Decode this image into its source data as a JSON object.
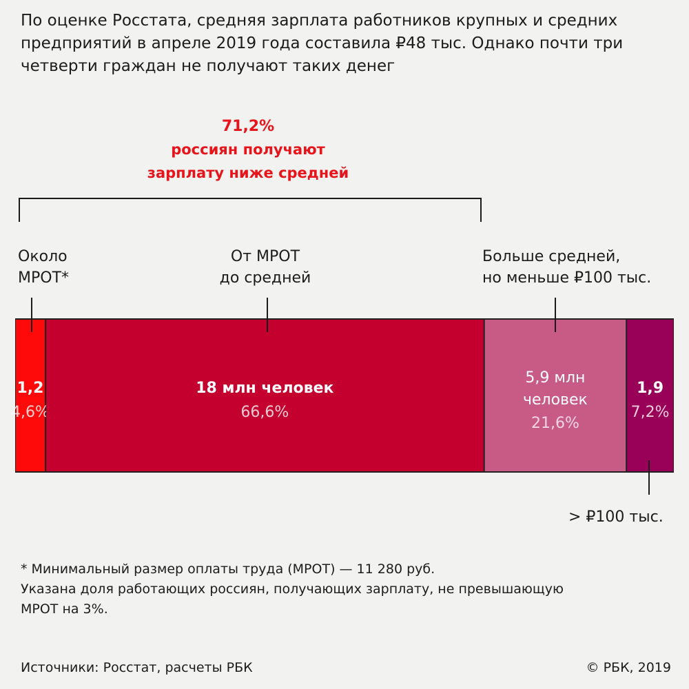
{
  "header": {
    "text": "По оценке Росстата, средняя зарплата работников крупных и средних предприятий в апреле 2019 года составила ₽48 тыс. Однако почти три четверти граждан не получают таких денег"
  },
  "highlight": {
    "percent": "71,2%",
    "line1": "россиян получают",
    "line2": "зарплату ниже средней",
    "color": "#e8141c"
  },
  "chart_data": {
    "type": "bar",
    "orientation": "horizontal-stacked",
    "unit": "%",
    "segments": [
      {
        "category_line1": "Около",
        "category_line2": "МРОТ*",
        "count_label": "1,2",
        "percent_label": "4,6%",
        "value": 4.6,
        "color": "#ff0a0a"
      },
      {
        "category_line1": "От МРОТ",
        "category_line2": "до средней",
        "count_label": "18 млн человек",
        "percent_label": "66,6%",
        "value": 66.6,
        "color": "#c4002f"
      },
      {
        "category_line1": "Больше средней,",
        "category_line2": "но меньше ₽100 тыс.",
        "count_label_line1": "5,9 млн",
        "count_label_line2": "человек",
        "percent_label": "21,6%",
        "value": 21.6,
        "color": "#c85a86"
      },
      {
        "category_line1": "> ₽100 тыс.",
        "count_label": "1,9",
        "percent_label": "7,2%",
        "value": 7.2,
        "color": "#990057"
      }
    ],
    "bracket_total": 71.2
  },
  "footnote": {
    "line1": "* Минимальный размер оплаты труда (МРОТ) — 11 280 руб.",
    "line2": "Указана доля работающих россиян, получающих зарплату, не превышающую",
    "line3": "МРОТ на 3%."
  },
  "sources": "Источники: Росстат, расчеты РБК",
  "copyright": "© РБК, 2019"
}
